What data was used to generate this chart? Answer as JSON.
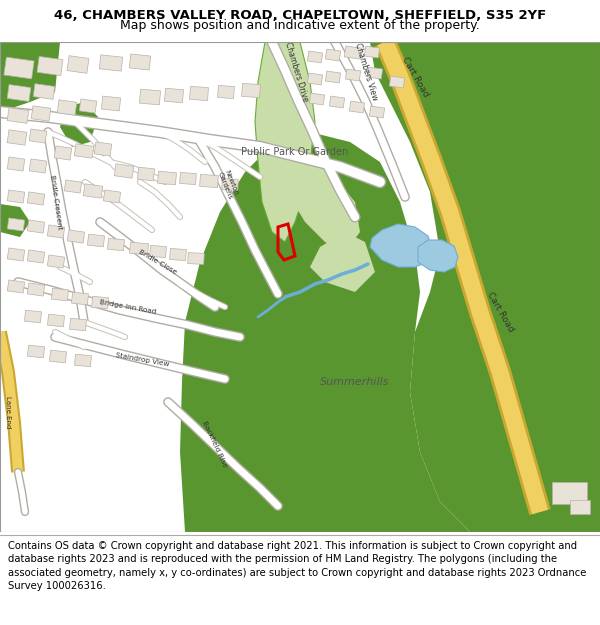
{
  "title_line1": "46, CHAMBERS VALLEY ROAD, CHAPELTOWN, SHEFFIELD, S35 2YF",
  "title_line2": "Map shows position and indicative extent of the property.",
  "footer_text": "Contains OS data © Crown copyright and database right 2021. This information is subject to Crown copyright and database rights 2023 and is reproduced with the permission of HM Land Registry. The polygons (including the associated geometry, namely x, y co-ordinates) are subject to Crown copyright and database rights 2023 Ordnance Survey 100026316.",
  "title_fontsize": 9.5,
  "subtitle_fontsize": 9.0,
  "footer_fontsize": 7.2,
  "fig_width": 6.0,
  "fig_height": 6.25,
  "dpi": 100,
  "map_bg_color": "#f2efe9",
  "green_dark": "#5a9630",
  "green_medium": "#6aaa38",
  "green_light": "#c8dda8",
  "green_park": "#b8d898",
  "road_white": "#ffffff",
  "road_outline": "#c8c4bc",
  "road_major_outline": "#b0aca4",
  "yellow_road": "#f0d060",
  "yellow_outline": "#c8a830",
  "blue_water": "#9ecae1",
  "blue_stream": "#6baed6",
  "building_fill": "#e8e2d8",
  "building_edge": "#b8b2a8",
  "plot_red": "#dd0000",
  "text_dark": "#333333",
  "text_mid": "#555555"
}
